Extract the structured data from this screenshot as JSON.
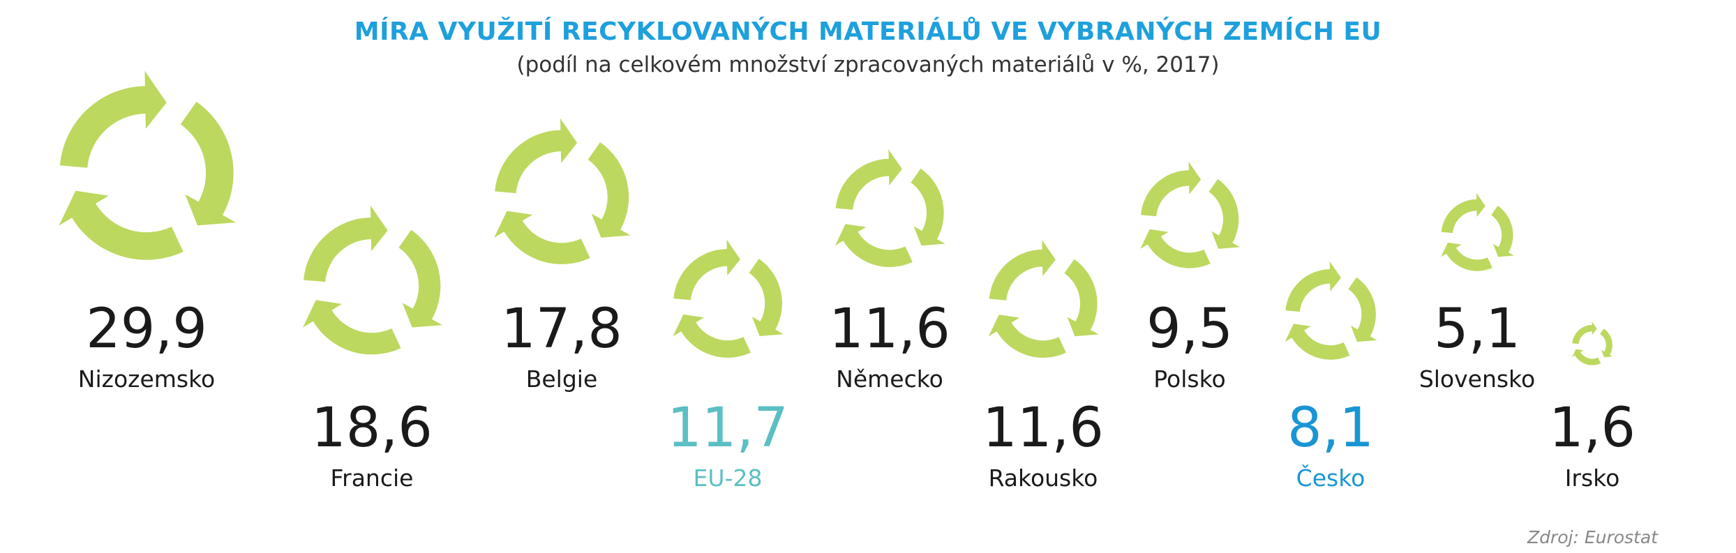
{
  "title": "MÍRA VYUŽITÍ RECYKLOVANÝCH MATERIÁLŮ VE VYBRANÝCH ZEMÍCH EU",
  "subtitle": "(podíl na celkovém množství zpracovaných materiálů v %, 2017)",
  "source": "Zdroj: Eurostat",
  "colors": {
    "icon": "#bcd85f",
    "default": "#1a1a1a",
    "eu": "#5bbfc3",
    "highlight": "#1a95d3",
    "title": "#1ea0dc"
  },
  "chart_data": {
    "type": "bar",
    "unit": "%",
    "categories": [
      "Nizozemsko",
      "Francie",
      "Belgie",
      "EU-28",
      "Německo",
      "Rakousko",
      "Polsko",
      "Česko",
      "Slovensko",
      "Irsko"
    ],
    "values": [
      29.9,
      18.6,
      17.8,
      11.7,
      11.6,
      11.6,
      9.5,
      8.1,
      5.1,
      1.6
    ],
    "value_labels": [
      "29,9",
      "18,6",
      "17,8",
      "11,7",
      "11,6",
      "11,6",
      "9,5",
      "8,1",
      "5,1",
      "1,6"
    ],
    "highlight": {
      "EU-28": "eu",
      "Česko": "highlight"
    },
    "icon": "recycle-icon"
  }
}
